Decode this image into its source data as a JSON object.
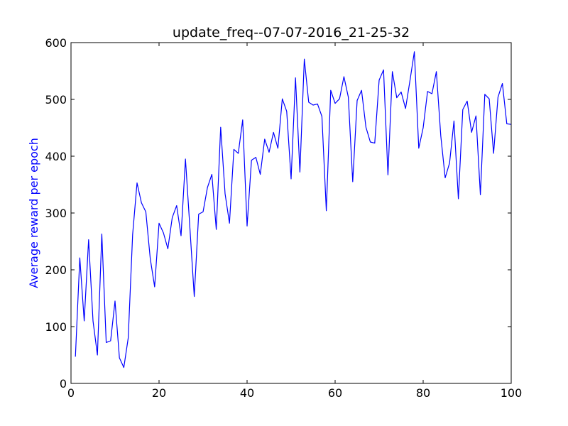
{
  "chart_data": {
    "type": "line",
    "title": "update_freq--07-07-2016_21-25-32",
    "xlabel": "",
    "ylabel": "Average reward per epoch",
    "ylabel_color": "#0000ff",
    "line_color": "#0000ff",
    "xlim": [
      0,
      100
    ],
    "ylim": [
      0,
      600
    ],
    "xticks": [
      0,
      20,
      40,
      60,
      80,
      100
    ],
    "yticks": [
      0,
      100,
      200,
      300,
      400,
      500,
      600
    ],
    "grid": false,
    "series": [
      {
        "name": "Average reward per epoch",
        "x": [
          1,
          2,
          3,
          4,
          5,
          6,
          7,
          8,
          9,
          10,
          11,
          12,
          13,
          14,
          15,
          16,
          17,
          18,
          19,
          20,
          21,
          22,
          23,
          24,
          25,
          26,
          27,
          28,
          29,
          30,
          31,
          32,
          33,
          34,
          35,
          36,
          37,
          38,
          39,
          40,
          41,
          42,
          43,
          44,
          45,
          46,
          47,
          48,
          49,
          50,
          51,
          52,
          53,
          54,
          55,
          56,
          57,
          58,
          59,
          60,
          61,
          62,
          63,
          64,
          65,
          66,
          67,
          68,
          69,
          70,
          71,
          72,
          73,
          74,
          75,
          76,
          77,
          78,
          79,
          80,
          81,
          82,
          83,
          84,
          85,
          86,
          87,
          88,
          89,
          90,
          91,
          92,
          93,
          94,
          95,
          96,
          97,
          98,
          99,
          100
        ],
        "y": [
          47,
          221,
          110,
          253,
          110,
          50,
          263,
          72,
          75,
          145,
          45,
          28,
          80,
          262,
          353,
          318,
          302,
          220,
          170,
          282,
          265,
          237,
          292,
          313,
          260,
          395,
          275,
          153,
          298,
          302,
          345,
          368,
          271,
          451,
          334,
          282,
          412,
          405,
          464,
          277,
          393,
          398,
          368,
          430,
          407,
          442,
          414,
          501,
          479,
          360,
          538,
          372,
          571,
          495,
          490,
          492,
          470,
          304,
          516,
          493,
          501,
          540,
          504,
          355,
          498,
          516,
          451,
          425,
          423,
          534,
          552,
          367,
          549,
          503,
          513,
          484,
          533,
          584,
          414,
          450,
          514,
          510,
          549,
          436,
          362,
          388,
          462,
          325,
          482,
          497,
          442,
          471,
          332,
          509,
          501,
          405,
          504,
          528,
          457,
          456
        ]
      }
    ]
  }
}
